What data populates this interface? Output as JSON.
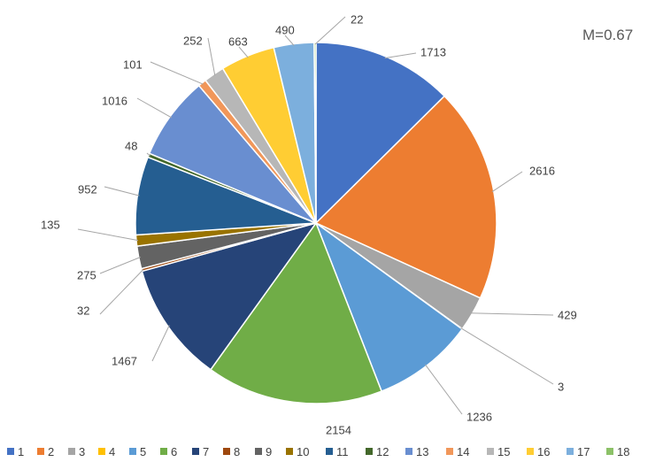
{
  "chart_data": {
    "type": "pie",
    "annotation": "M=0.67",
    "categories": [
      "1",
      "2",
      "3",
      "4",
      "5",
      "6",
      "7",
      "8",
      "9",
      "10",
      "11",
      "12",
      "13",
      "14",
      "15",
      "16",
      "17",
      "18"
    ],
    "values": [
      1713,
      2616,
      429,
      3,
      1236,
      2154,
      1467,
      32,
      275,
      135,
      952,
      48,
      1016,
      101,
      252,
      663,
      490,
      22
    ],
    "colors": [
      "#4472C4",
      "#ED7D31",
      "#A5A5A5",
      "#FFC000",
      "#5B9BD5",
      "#70AD47",
      "#264478",
      "#9E480E",
      "#636363",
      "#997300",
      "#255E91",
      "#43682B",
      "#698ED0",
      "#F1975A",
      "#B7B7B7",
      "#FFCD33",
      "#7CAFDD",
      "#8CC168"
    ],
    "legend_position": "bottom"
  }
}
